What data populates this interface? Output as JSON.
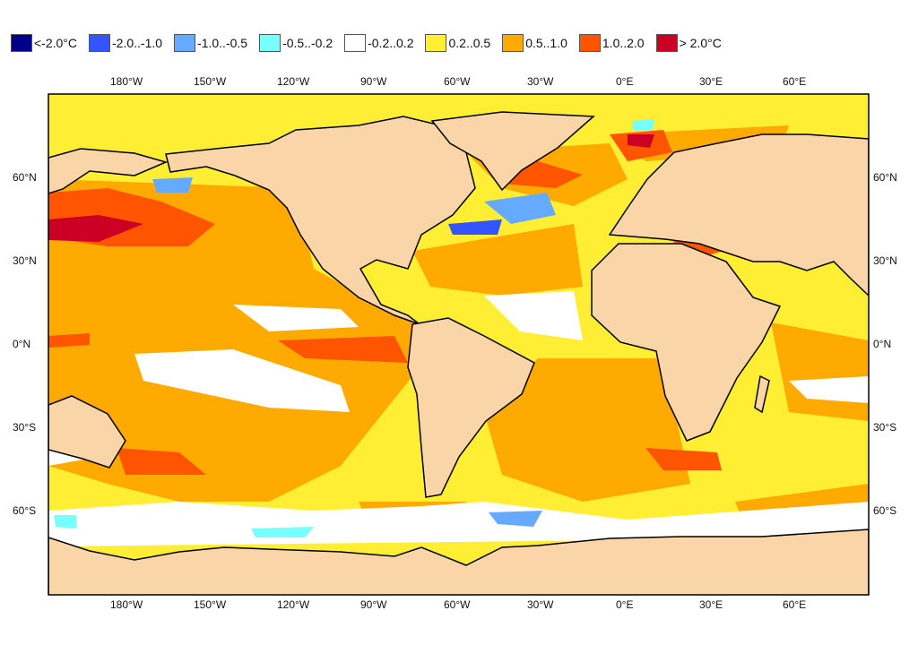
{
  "legend": [
    {
      "label": "<-2.0°C",
      "color": "#00008B"
    },
    {
      "label": "-2.0..-1.0",
      "color": "#3355FF"
    },
    {
      "label": "-1.0..-0.5",
      "color": "#66AAFF"
    },
    {
      "label": "-0.5..-0.2",
      "color": "#77FFFF"
    },
    {
      "label": "-0.2..0.2",
      "color": "#FFFFFF"
    },
    {
      "label": "0.2..0.5",
      "color": "#FFEE33"
    },
    {
      "label": "0.5..1.0",
      "color": "#FFAA00"
    },
    {
      "label": "1.0..2.0",
      "color": "#FF5500"
    },
    {
      "label": "> 2.0°C",
      "color": "#CC0022"
    }
  ],
  "lon_ticks": [
    "180°W",
    "150°W",
    "120°W",
    "90°W",
    "60°W",
    "30°W",
    "0°E",
    "30°E",
    "60°E"
  ],
  "lat_ticks": [
    "60°N",
    "30°N",
    "0°N",
    "30°S",
    "60°S"
  ],
  "land_color": "#F9D5A7"
}
